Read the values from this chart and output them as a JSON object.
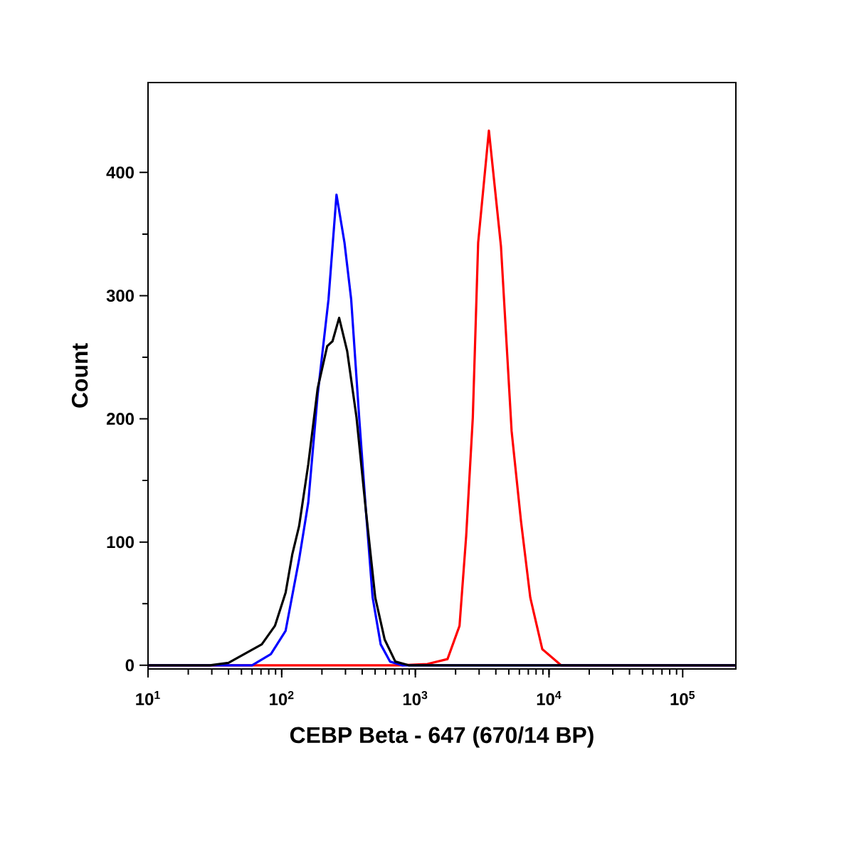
{
  "chart_data": {
    "type": "line",
    "xlabel": "CEBP Beta - 647 (670/14 BP)",
    "ylabel": "Count",
    "log": "x",
    "xlim": [
      10,
      250000
    ],
    "ylim": [
      -3,
      473
    ],
    "xticks": [
      {
        "value": 10,
        "label": "10$^{1}$"
      },
      {
        "value": 100,
        "label": "10$^{2}$"
      },
      {
        "value": 1000,
        "label": "10$^{3}$"
      },
      {
        "value": 10000,
        "label": "10$^{4}$"
      },
      {
        "value": 100000,
        "label": "10$^{5}$"
      }
    ],
    "yticks": [
      0,
      100,
      200,
      300,
      400
    ],
    "marker": "none",
    "line_style": "solid",
    "series": [
      {
        "color": "#ff0000",
        "x": [
          10,
          759,
          1230,
          1740,
          2140,
          2400,
          2690,
          2950,
          3550,
          4370,
          5250,
          6170,
          7240,
          8910,
          12300,
          250000
        ],
        "values": [
          0,
          0,
          1,
          5,
          32,
          105,
          201,
          343,
          434,
          340,
          190,
          117,
          55,
          13,
          0,
          0
        ]
      },
      {
        "color": "#0000ff",
        "x": [
          10,
          60,
          83,
          107,
          135,
          158,
          186,
          224,
          257,
          295,
          331,
          380,
          427,
          479,
          550,
          646,
          794,
          250000
        ],
        "values": [
          0,
          0,
          9,
          28,
          86,
          132,
          220,
          297,
          382,
          343,
          297,
          201,
          125,
          55,
          17,
          3,
          0,
          0
        ]
      },
      {
        "color": "#000000",
        "x": [
          10,
          29,
          40,
          71,
          89,
          107,
          120,
          135,
          158,
          186,
          219,
          240,
          269,
          309,
          363,
          427,
          501,
          589,
          708,
          891,
          250000
        ],
        "values": [
          0,
          0,
          2,
          17,
          32,
          59,
          90,
          113,
          163,
          225,
          259,
          263,
          282,
          255,
          201,
          125,
          55,
          21,
          3,
          0,
          0
        ]
      }
    ]
  }
}
